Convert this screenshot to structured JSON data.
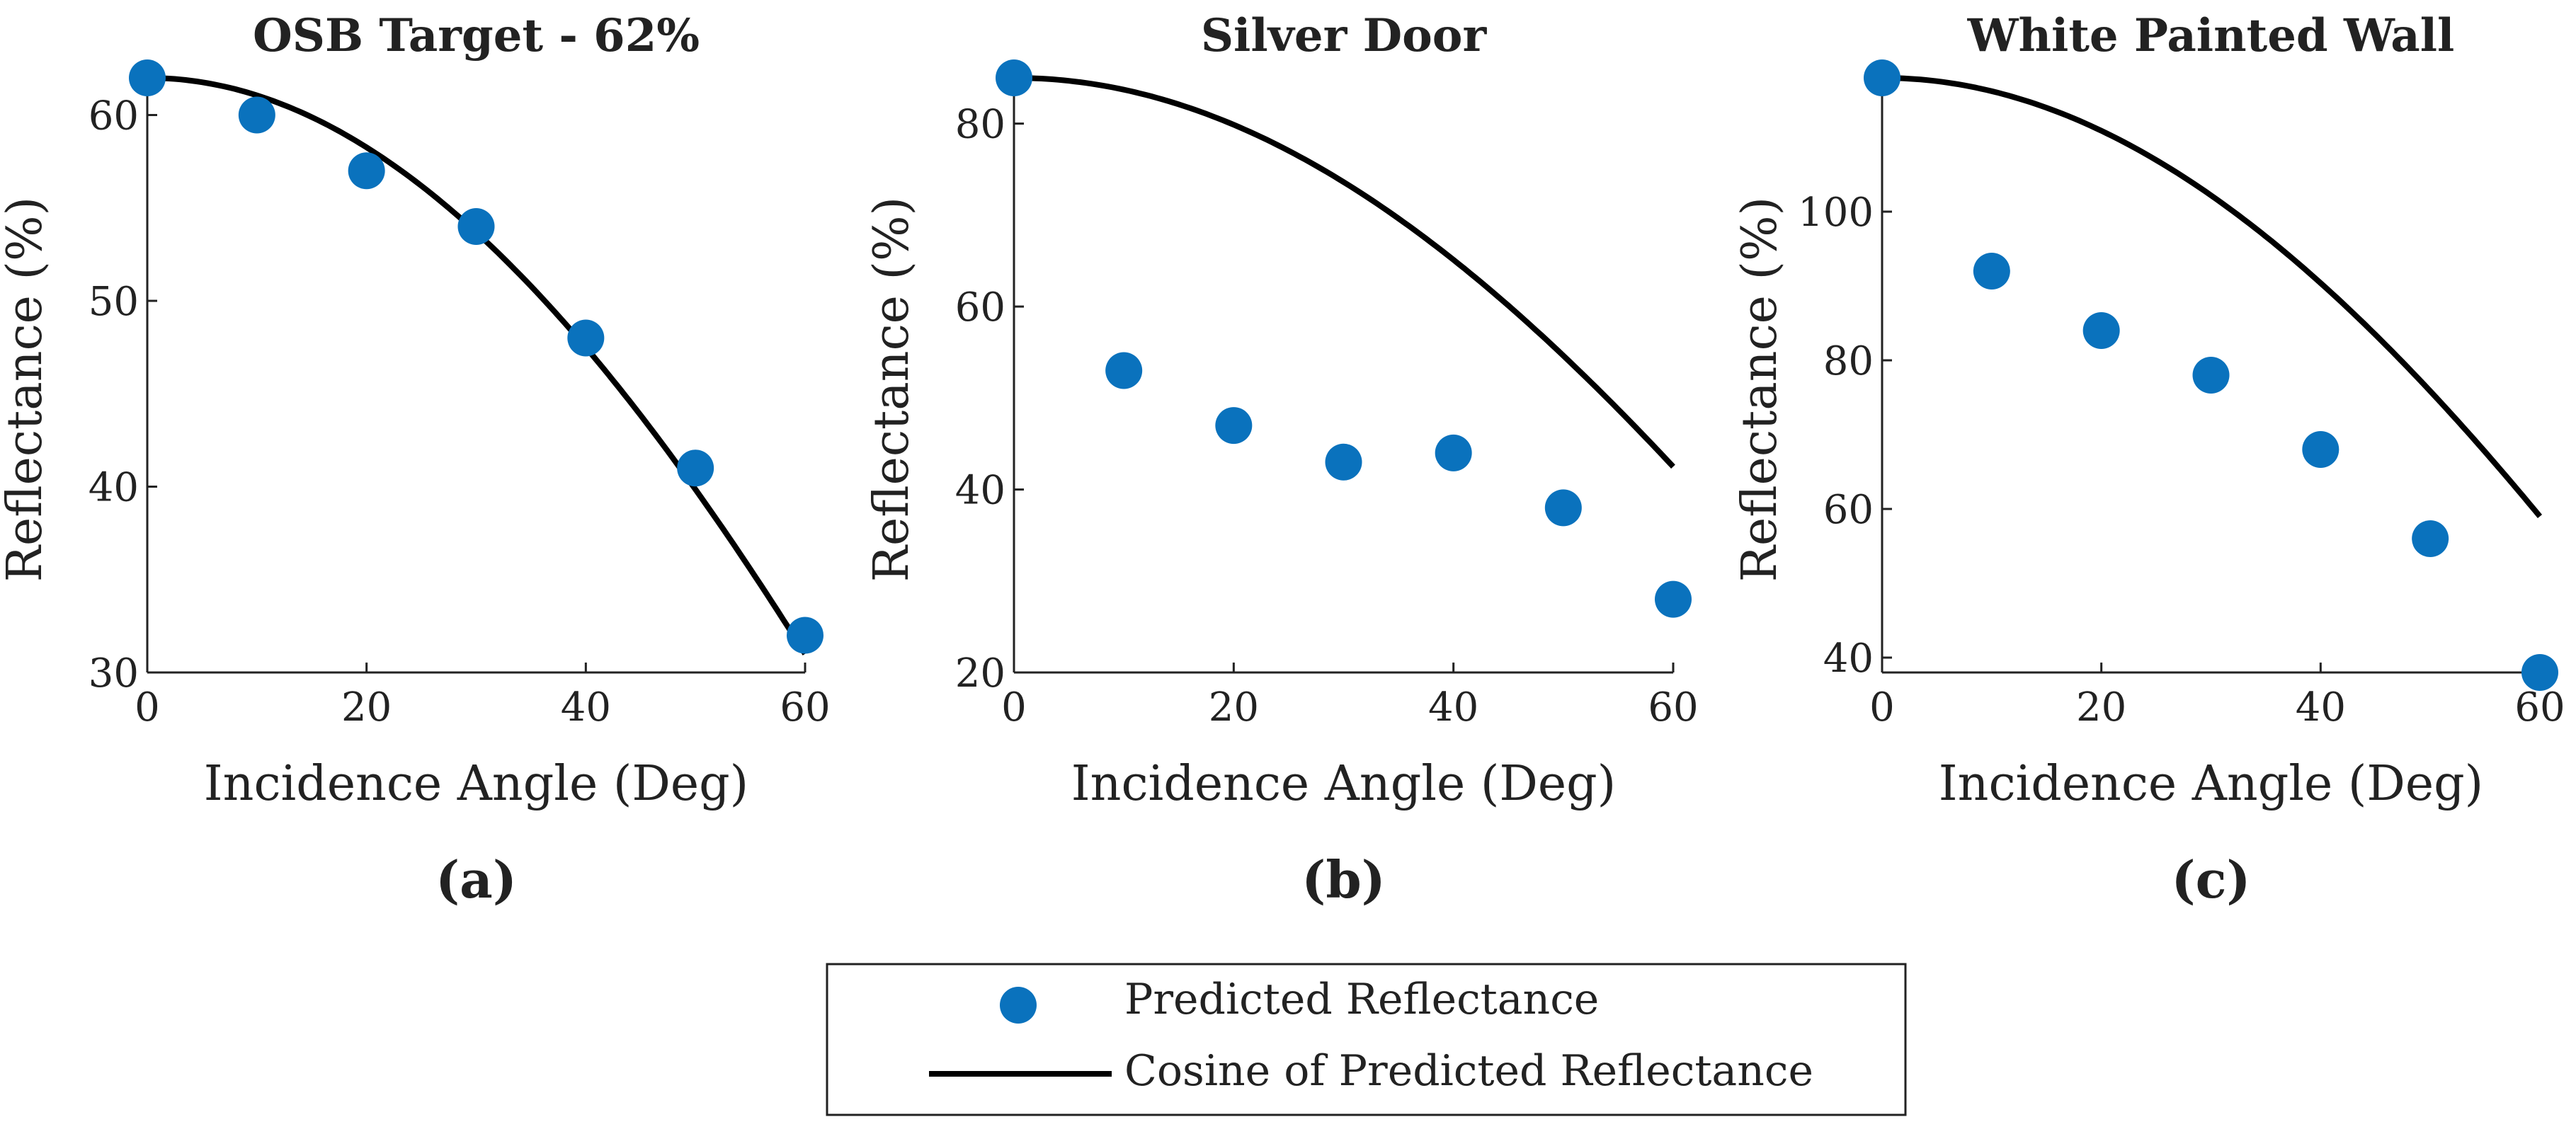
{
  "chart_data": [
    {
      "type": "scatter",
      "panel_label": "(a)",
      "title": "OSB Target - 62%",
      "xlabel": "Incidence Angle (Deg)",
      "ylabel": "Reflectance (%)",
      "xlim": [
        0,
        60
      ],
      "ylim": [
        30,
        62
      ],
      "xticks": [
        0,
        20,
        40,
        60
      ],
      "yticks": [
        30,
        40,
        50,
        60
      ],
      "grid": false,
      "series": [
        {
          "name": "Predicted Reflectance",
          "kind": "points",
          "x": [
            0,
            10,
            20,
            30,
            40,
            50,
            60
          ],
          "y": [
            62,
            60,
            57,
            54,
            48,
            41,
            32
          ]
        },
        {
          "name": "Cosine of Predicted Reflectance",
          "kind": "line",
          "peak": 62,
          "x_range": [
            0,
            60
          ],
          "y_end": 31
        }
      ]
    },
    {
      "type": "scatter",
      "panel_label": "(b)",
      "title": "Silver Door",
      "xlabel": "Incidence Angle (Deg)",
      "ylabel": "Reflectance (%)",
      "xlim": [
        0,
        60
      ],
      "ylim": [
        20,
        85
      ],
      "xticks": [
        0,
        20,
        40,
        60
      ],
      "yticks": [
        20,
        40,
        60,
        80
      ],
      "grid": false,
      "series": [
        {
          "name": "Predicted Reflectance",
          "kind": "points",
          "x": [
            0,
            10,
            20,
            30,
            40,
            50,
            60
          ],
          "y": [
            85,
            53,
            47,
            43,
            44,
            38,
            28
          ]
        },
        {
          "name": "Cosine of Predicted Reflectance",
          "kind": "line",
          "peak": 85,
          "x_range": [
            0,
            60
          ],
          "y_end": 42.5
        }
      ]
    },
    {
      "type": "scatter",
      "panel_label": "(c)",
      "title": "White Painted Wall",
      "xlabel": "Incidence Angle (Deg)",
      "ylabel": "Reflectance (%)",
      "xlim": [
        0,
        60
      ],
      "ylim": [
        38,
        118
      ],
      "xticks": [
        0,
        20,
        40,
        60
      ],
      "yticks": [
        40,
        60,
        80,
        100
      ],
      "grid": false,
      "series": [
        {
          "name": "Predicted Reflectance",
          "kind": "points",
          "x": [
            0,
            10,
            20,
            30,
            40,
            50,
            60
          ],
          "y": [
            118,
            92,
            84,
            78,
            68,
            56,
            38
          ]
        },
        {
          "name": "Cosine of Predicted Reflectance",
          "kind": "line",
          "peak": 118,
          "x_range": [
            0,
            60
          ],
          "y_end": 59
        }
      ]
    }
  ],
  "legend": {
    "position": "bottom-center",
    "entries": [
      "Predicted Reflectance",
      "Cosine of Predicted Reflectance"
    ]
  },
  "colors": {
    "points": "#0A72BD",
    "line": "#000000",
    "axis": "#222222"
  }
}
